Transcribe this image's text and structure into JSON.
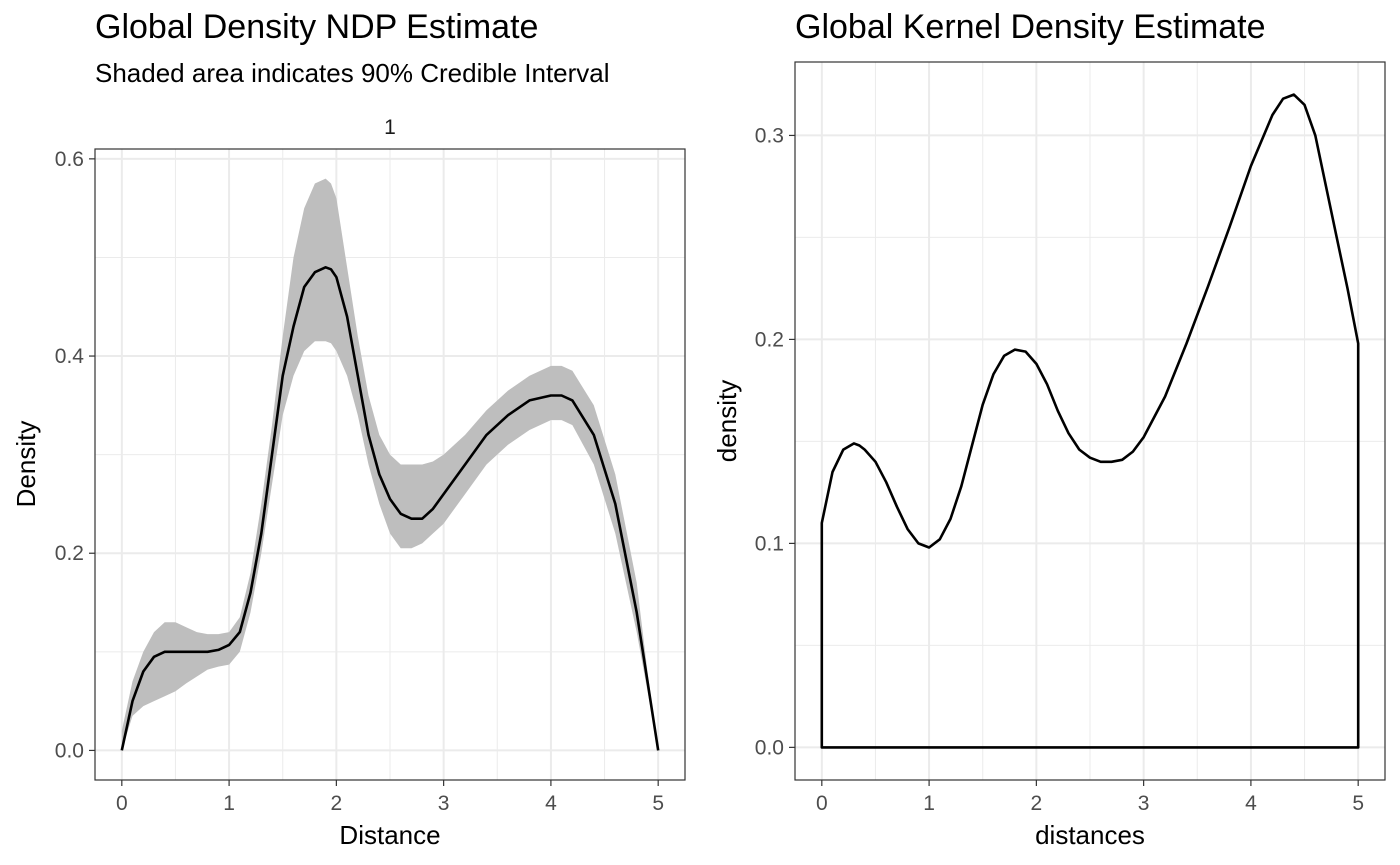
{
  "chart_data": [
    {
      "type": "line",
      "title": "Global Density NDP Estimate",
      "subtitle": "Shaded area indicates 90% Credible Interval",
      "facet_label": "1",
      "xlabel": "Distance",
      "ylabel": "Density",
      "xlim": [
        -0.25,
        5.25
      ],
      "ylim": [
        -0.03,
        0.61
      ],
      "x_ticks": [
        "0",
        "1",
        "2",
        "3",
        "4",
        "5"
      ],
      "y_ticks": [
        "0.0",
        "0.2",
        "0.4",
        "0.6"
      ],
      "grid": true,
      "colors": {
        "line": "#000000",
        "band": "#bebebe",
        "grid": "#ebebeb",
        "border": "#333333"
      },
      "series": [
        {
          "name": "median",
          "x": [
            0,
            0.1,
            0.2,
            0.3,
            0.4,
            0.5,
            0.6,
            0.7,
            0.8,
            0.9,
            1.0,
            1.1,
            1.2,
            1.3,
            1.4,
            1.5,
            1.6,
            1.7,
            1.8,
            1.9,
            1.95,
            2.0,
            2.1,
            2.2,
            2.3,
            2.4,
            2.5,
            2.6,
            2.7,
            2.8,
            2.9,
            3.0,
            3.2,
            3.4,
            3.6,
            3.8,
            4.0,
            4.1,
            4.2,
            4.4,
            4.6,
            4.8,
            4.9,
            5.0
          ],
          "y": [
            0.0,
            0.05,
            0.08,
            0.095,
            0.1,
            0.1,
            0.1,
            0.1,
            0.1,
            0.102,
            0.107,
            0.12,
            0.16,
            0.22,
            0.3,
            0.38,
            0.43,
            0.47,
            0.485,
            0.49,
            0.488,
            0.48,
            0.44,
            0.38,
            0.32,
            0.28,
            0.255,
            0.24,
            0.235,
            0.235,
            0.245,
            0.26,
            0.29,
            0.32,
            0.34,
            0.355,
            0.36,
            0.36,
            0.355,
            0.32,
            0.25,
            0.14,
            0.07,
            0.0
          ]
        },
        {
          "name": "upper",
          "x": [
            0,
            0.1,
            0.2,
            0.3,
            0.4,
            0.5,
            0.6,
            0.7,
            0.8,
            0.9,
            1.0,
            1.1,
            1.2,
            1.3,
            1.4,
            1.5,
            1.6,
            1.7,
            1.8,
            1.9,
            1.95,
            2.0,
            2.1,
            2.2,
            2.3,
            2.4,
            2.5,
            2.6,
            2.7,
            2.8,
            2.9,
            3.0,
            3.2,
            3.4,
            3.6,
            3.8,
            4.0,
            4.1,
            4.2,
            4.4,
            4.6,
            4.8,
            4.9,
            5.0
          ],
          "y": [
            0.02,
            0.07,
            0.1,
            0.12,
            0.13,
            0.13,
            0.125,
            0.12,
            0.118,
            0.118,
            0.12,
            0.135,
            0.18,
            0.25,
            0.33,
            0.42,
            0.5,
            0.55,
            0.575,
            0.58,
            0.575,
            0.56,
            0.49,
            0.42,
            0.36,
            0.32,
            0.3,
            0.29,
            0.29,
            0.29,
            0.293,
            0.3,
            0.32,
            0.345,
            0.365,
            0.38,
            0.39,
            0.39,
            0.385,
            0.35,
            0.28,
            0.17,
            0.08,
            0.0
          ]
        },
        {
          "name": "lower",
          "x": [
            0,
            0.1,
            0.2,
            0.3,
            0.4,
            0.5,
            0.6,
            0.7,
            0.8,
            0.9,
            1.0,
            1.1,
            1.2,
            1.3,
            1.4,
            1.5,
            1.6,
            1.7,
            1.8,
            1.9,
            1.95,
            2.0,
            2.1,
            2.2,
            2.3,
            2.4,
            2.5,
            2.6,
            2.7,
            2.8,
            2.9,
            3.0,
            3.2,
            3.4,
            3.6,
            3.8,
            4.0,
            4.1,
            4.2,
            4.4,
            4.6,
            4.8,
            4.9,
            5.0
          ],
          "y": [
            0.0,
            0.035,
            0.045,
            0.05,
            0.055,
            0.06,
            0.068,
            0.075,
            0.082,
            0.085,
            0.087,
            0.1,
            0.14,
            0.2,
            0.27,
            0.34,
            0.38,
            0.405,
            0.415,
            0.415,
            0.413,
            0.405,
            0.38,
            0.34,
            0.29,
            0.25,
            0.22,
            0.205,
            0.205,
            0.21,
            0.22,
            0.23,
            0.26,
            0.29,
            0.31,
            0.325,
            0.335,
            0.335,
            0.33,
            0.29,
            0.22,
            0.12,
            0.06,
            0.0
          ]
        }
      ]
    },
    {
      "type": "line",
      "title": "Global Kernel Density Estimate",
      "xlabel": "distances",
      "ylabel": "density",
      "xlim": [
        -0.25,
        5.25
      ],
      "ylim": [
        -0.016,
        0.336
      ],
      "x_ticks": [
        "0",
        "1",
        "2",
        "3",
        "4",
        "5"
      ],
      "y_ticks": [
        "0.0",
        "0.1",
        "0.2",
        "0.3"
      ],
      "grid": true,
      "colors": {
        "line": "#000000",
        "grid": "#ebebeb",
        "border": "#333333"
      },
      "series": [
        {
          "name": "density",
          "x": [
            0,
            0.1,
            0.2,
            0.3,
            0.35,
            0.4,
            0.5,
            0.6,
            0.7,
            0.8,
            0.9,
            1.0,
            1.1,
            1.2,
            1.3,
            1.4,
            1.5,
            1.6,
            1.7,
            1.8,
            1.9,
            2.0,
            2.1,
            2.2,
            2.3,
            2.4,
            2.5,
            2.6,
            2.7,
            2.8,
            2.9,
            3.0,
            3.2,
            3.4,
            3.6,
            3.8,
            4.0,
            4.2,
            4.3,
            4.4,
            4.5,
            4.6,
            4.7,
            4.8,
            4.9,
            5.0
          ],
          "y": [
            0.11,
            0.135,
            0.146,
            0.149,
            0.148,
            0.146,
            0.14,
            0.13,
            0.118,
            0.107,
            0.1,
            0.098,
            0.102,
            0.112,
            0.128,
            0.148,
            0.168,
            0.183,
            0.192,
            0.195,
            0.194,
            0.188,
            0.178,
            0.165,
            0.154,
            0.146,
            0.142,
            0.14,
            0.14,
            0.141,
            0.145,
            0.152,
            0.172,
            0.198,
            0.226,
            0.255,
            0.285,
            0.31,
            0.318,
            0.32,
            0.315,
            0.3,
            0.275,
            0.25,
            0.225,
            0.198
          ]
        }
      ]
    }
  ]
}
